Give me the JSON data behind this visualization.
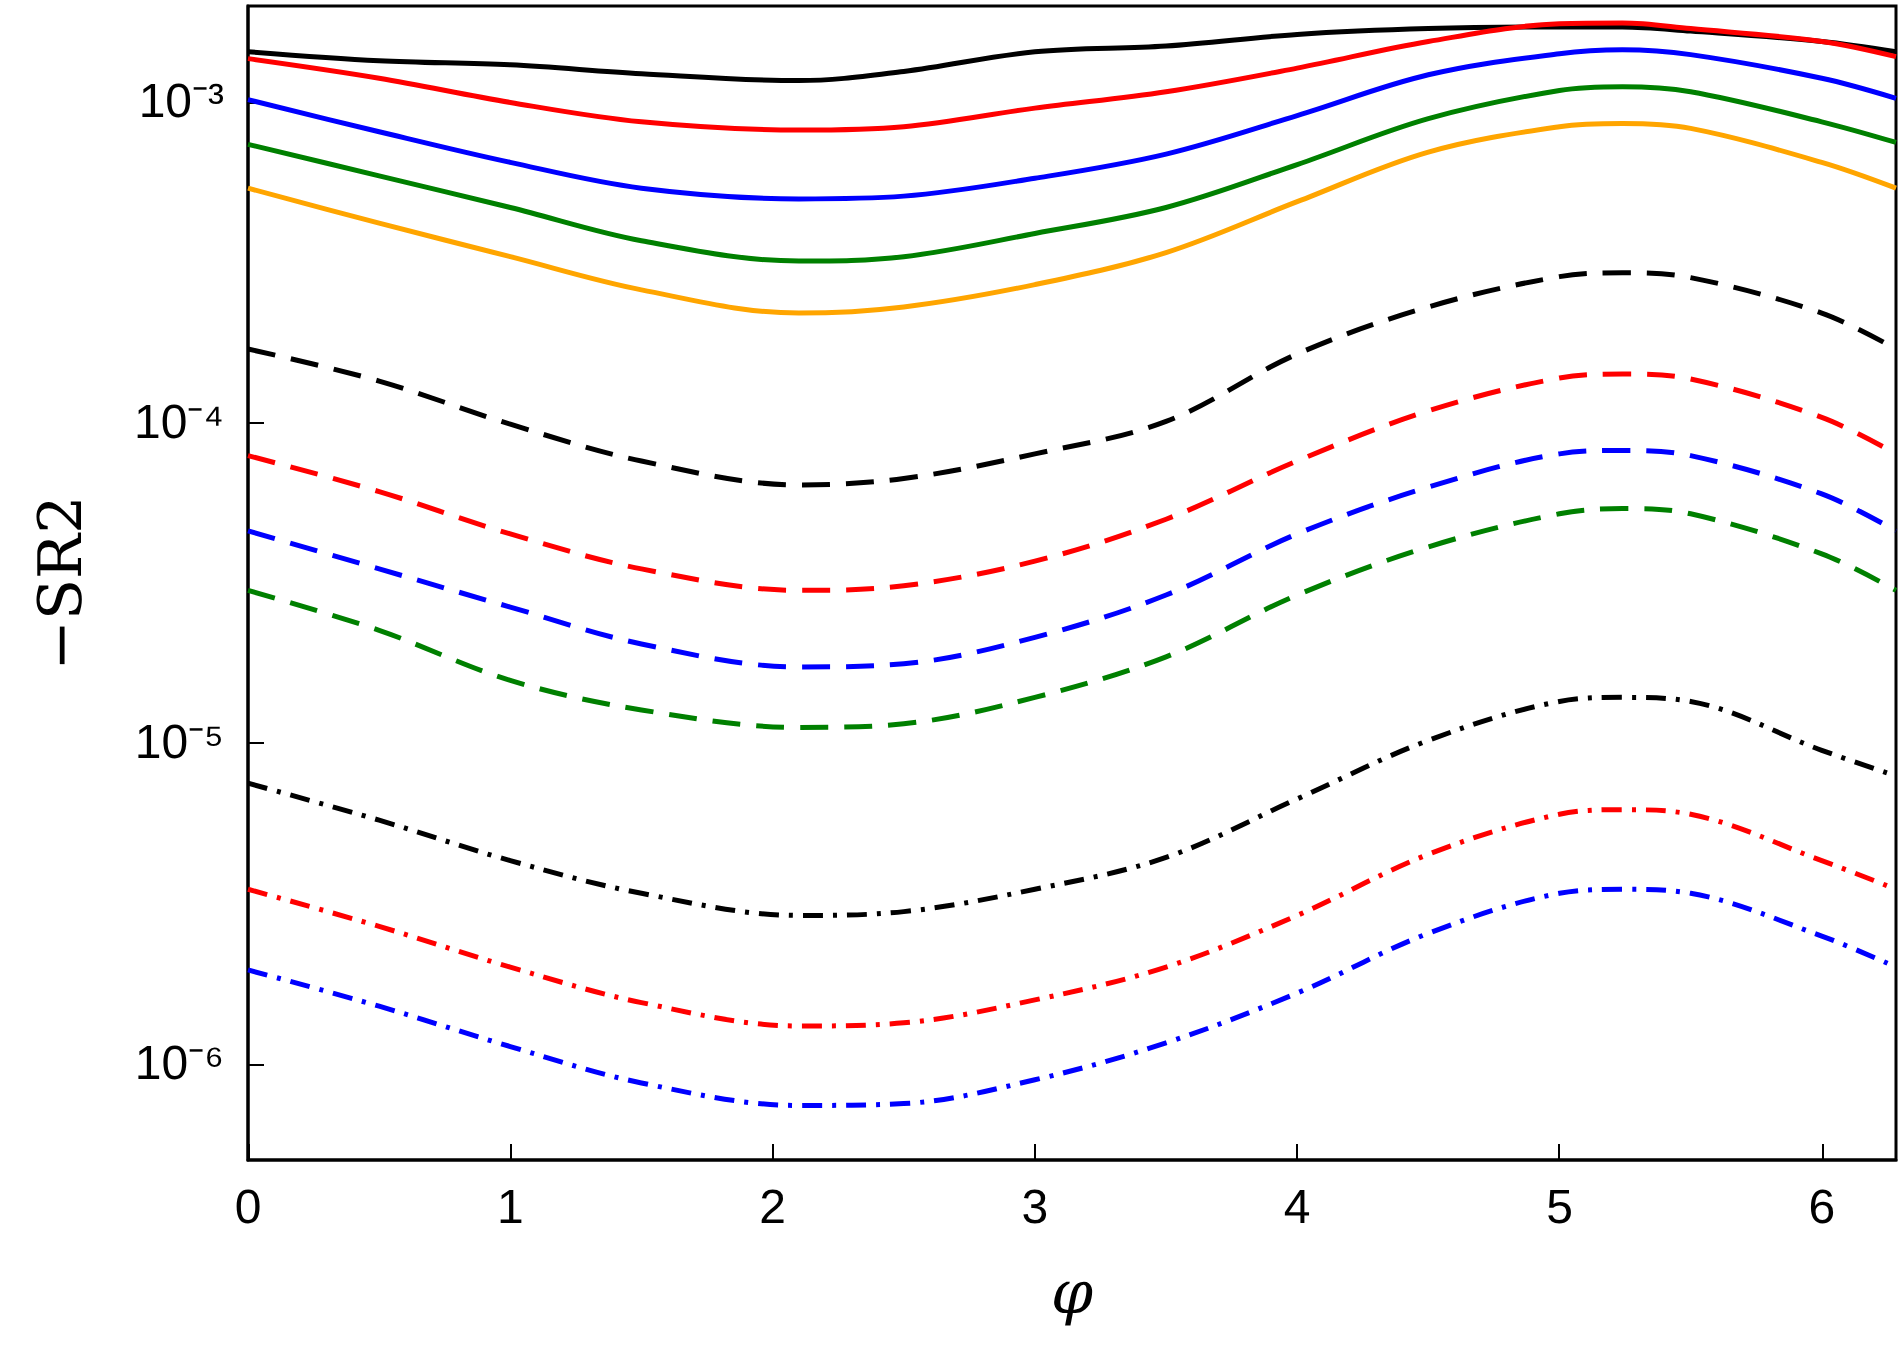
{
  "chart_data": {
    "type": "line",
    "xlabel": "φ",
    "ylabel": "−SR2",
    "log": "y",
    "grid": false,
    "marker": "none",
    "x": [
      0,
      0.5,
      1,
      1.5,
      2.1,
      2.5,
      3,
      3.5,
      4,
      4.5,
      5,
      5.24,
      5.5,
      6,
      6.283
    ],
    "xlim": [
      0,
      6.283
    ],
    "xticks": [
      0,
      1,
      2,
      3,
      4,
      5,
      6
    ],
    "ylim": [
      5e-07,
      0.002
    ],
    "yticks": [
      {
        "value": 1e-06,
        "label": "10⁻⁶"
      },
      {
        "value": 1e-05,
        "label": "10⁻⁵"
      },
      {
        "value": 0.0001,
        "label": "10⁻⁴"
      },
      {
        "value": 0.001,
        "label": "10⁻³"
      }
    ],
    "series": [
      {
        "color": "#000000",
        "line_style": "solid",
        "values": [
          0.00144,
          0.00135,
          0.00131,
          0.00123,
          0.00117,
          0.00125,
          0.00144,
          0.0015,
          0.00163,
          0.0017,
          0.00172,
          0.00172,
          0.00167,
          0.00155,
          0.00144
        ]
      },
      {
        "color": "#ff0000",
        "line_style": "solid",
        "values": [
          0.00137,
          0.00119,
          0.001,
          0.00087,
          0.00082,
          0.00084,
          0.00096,
          0.00108,
          0.00128,
          0.00155,
          0.00176,
          0.00177,
          0.0017,
          0.00155,
          0.00139
        ]
      },
      {
        "color": "#0000ff",
        "line_style": "solid",
        "values": [
          0.00102,
          0.00081,
          0.00065,
          0.00054,
          0.0005,
          0.00051,
          0.00058,
          0.00069,
          0.00091,
          0.00122,
          0.00142,
          0.00146,
          0.00141,
          0.00119,
          0.00103
        ]
      },
      {
        "color": "#008000",
        "line_style": "solid",
        "values": [
          0.00074,
          0.00059,
          0.00047,
          0.00037,
          0.00032,
          0.00033,
          0.00039,
          0.00047,
          0.00064,
          0.00089,
          0.00109,
          0.00112,
          0.00108,
          0.00087,
          0.00075
        ]
      },
      {
        "color": "#ffa500",
        "line_style": "solid",
        "values": [
          0.00054,
          0.00042,
          0.00033,
          0.00026,
          0.00022,
          0.00023,
          0.00027,
          0.00034,
          0.00049,
          0.0007,
          0.00084,
          0.00086,
          0.00083,
          0.00065,
          0.00054
        ]
      },
      {
        "color": "#000000",
        "line_style": "dashed",
        "values": [
          0.00017,
          0.000135,
          9.9e-05,
          7.6e-05,
          6.4e-05,
          6.7e-05,
          8e-05,
          0.000101,
          0.000164,
          0.00023,
          0.000286,
          0.000294,
          0.000284,
          0.00022,
          0.00017
        ]
      },
      {
        "color": "#ff0000",
        "line_style": "dashed",
        "values": [
          7.9e-05,
          6.1e-05,
          4.5e-05,
          3.5e-05,
          3e-05,
          3.1e-05,
          3.7e-05,
          5e-05,
          7.6e-05,
          0.000109,
          0.000138,
          0.000142,
          0.000137,
          0.000104,
          8e-05
        ]
      },
      {
        "color": "#0000ff",
        "line_style": "dashed",
        "values": [
          4.6e-05,
          3.5e-05,
          2.66e-05,
          2.04e-05,
          1.73e-05,
          1.77e-05,
          2.14e-05,
          2.9e-05,
          4.5e-05,
          6.3e-05,
          8e-05,
          8.2e-05,
          7.9e-05,
          6e-05,
          4.6e-05
        ]
      },
      {
        "color": "#008000",
        "line_style": "dashed",
        "values": [
          3e-05,
          2.25e-05,
          1.57e-05,
          1.27e-05,
          1.12e-05,
          1.15e-05,
          1.39e-05,
          1.86e-05,
          2.9e-05,
          4.1e-05,
          5.2e-05,
          5.4e-05,
          5.2e-05,
          3.9e-05,
          3e-05
        ]
      },
      {
        "color": "#000000",
        "line_style": "dashdot",
        "values": [
          7.5e-06,
          5.75e-06,
          4.3e-06,
          3.4e-06,
          2.9e-06,
          2.98e-06,
          3.5e-06,
          4.4e-06,
          6.7e-06,
          1.02e-05,
          1.35e-05,
          1.39e-05,
          1.35e-05,
          9.5e-06,
          7.9e-06
        ]
      },
      {
        "color": "#ff0000",
        "line_style": "dashdot",
        "values": [
          3.5e-06,
          2.68e-06,
          2e-06,
          1.55e-06,
          1.31e-06,
          1.34e-06,
          1.58e-06,
          2e-06,
          2.9e-06,
          4.5e-06,
          6e-06,
          6.2e-06,
          6e-06,
          4.3e-06,
          3.5e-06
        ]
      },
      {
        "color": "#0000ff",
        "line_style": "dashdot",
        "values": [
          1.96e-06,
          1.51e-06,
          1.13e-06,
          8.7e-07,
          7.4e-07,
          7.5e-07,
          8.9e-07,
          1.16e-06,
          1.66e-06,
          2.55e-06,
          3.4e-06,
          3.5e-06,
          3.4e-06,
          2.5e-06,
          2e-06
        ]
      }
    ]
  }
}
